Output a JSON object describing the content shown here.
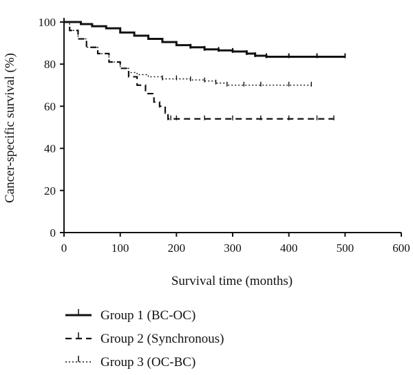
{
  "chart_data": {
    "type": "line",
    "xlabel": "Survival time (months)",
    "ylabel": "Cancer-specific survival (%)",
    "xlim": [
      0,
      600
    ],
    "ylim": [
      0,
      100
    ],
    "xticks": [
      0,
      100,
      200,
      300,
      400,
      500,
      600
    ],
    "yticks": [
      0,
      20,
      40,
      60,
      80,
      100
    ],
    "grid": false,
    "legend_position": "bottom-left",
    "series": [
      {
        "name": "Group 1 (BC-OC)",
        "style": "solid",
        "x": [
          0,
          10,
          30,
          50,
          75,
          100,
          125,
          150,
          175,
          200,
          225,
          250,
          275,
          300,
          325,
          340,
          360,
          400,
          450,
          500
        ],
        "y": [
          100,
          100,
          99,
          98,
          97,
          95,
          93.5,
          92,
          90.5,
          89,
          88,
          87,
          86.5,
          86,
          85,
          84,
          83.5,
          83.5,
          83.5,
          83.5
        ]
      },
      {
        "name": "Group 2 (Synchronous)",
        "style": "dashed",
        "x": [
          0,
          10,
          25,
          40,
          60,
          80,
          100,
          115,
          130,
          145,
          160,
          170,
          180,
          185,
          190,
          200,
          250,
          300,
          350,
          400,
          450,
          480
        ],
        "y": [
          100,
          96,
          92,
          88,
          85,
          81,
          78,
          74,
          70,
          66,
          62,
          60,
          57,
          54,
          54,
          54,
          54,
          54,
          54,
          54,
          54,
          54
        ]
      },
      {
        "name": "Group 3 (OC-BC)",
        "style": "dotted",
        "x": [
          0,
          10,
          25,
          40,
          60,
          80,
          100,
          115,
          130,
          150,
          175,
          200,
          225,
          250,
          270,
          290,
          320,
          350,
          400,
          440
        ],
        "y": [
          100,
          96,
          92,
          88,
          85,
          81,
          78,
          76,
          75,
          74,
          73,
          73,
          72.5,
          72,
          71,
          70,
          70,
          70,
          70,
          70
        ]
      }
    ]
  }
}
